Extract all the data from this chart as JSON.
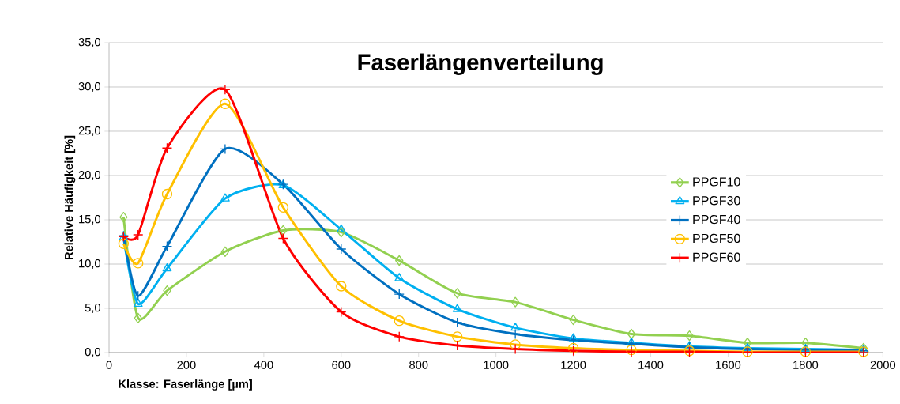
{
  "chart_data": {
    "type": "line",
    "title": "Faserlängenverteilung",
    "xlabel": "Klasse: Faserlänge [µm]",
    "ylabel": "Relative Häufigkeit [%]",
    "x": [
      37.5,
      75,
      150,
      300,
      450,
      600,
      750,
      900,
      1050,
      1200,
      1350,
      1500,
      1650,
      1800,
      1950
    ],
    "series": [
      {
        "name": "PPGF10",
        "color": "#92d050",
        "marker": "diamond",
        "values": [
          15.3,
          3.9,
          7.0,
          11.4,
          13.8,
          13.6,
          10.4,
          6.7,
          5.7,
          3.7,
          2.1,
          1.9,
          1.1,
          1.1,
          0.5
        ]
      },
      {
        "name": "PPGF30",
        "color": "#00b0f0",
        "marker": "triangle",
        "values": [
          13.0,
          5.5,
          9.5,
          17.4,
          18.9,
          13.9,
          8.4,
          4.9,
          2.8,
          1.6,
          1.1,
          0.7,
          0.5,
          0.4,
          0.3
        ]
      },
      {
        "name": "PPGF40",
        "color": "#0070c0",
        "marker": "cross",
        "values": [
          13.2,
          6.4,
          12.0,
          23.0,
          19.0,
          11.7,
          6.6,
          3.4,
          2.1,
          1.4,
          1.0,
          0.6,
          0.4,
          0.3,
          0.2
        ]
      },
      {
        "name": "PPGF50",
        "color": "#ffc000",
        "marker": "circle",
        "values": [
          12.3,
          10.1,
          17.9,
          28.1,
          16.4,
          7.5,
          3.6,
          1.8,
          0.9,
          0.5,
          0.3,
          0.2,
          0.1,
          0.1,
          0.1
        ]
      },
      {
        "name": "PPGF60",
        "color": "#ff0000",
        "marker": "cross",
        "values": [
          13.1,
          13.3,
          23.1,
          29.7,
          12.9,
          4.6,
          1.8,
          0.8,
          0.4,
          0.2,
          0.1,
          0.1,
          0.0,
          0.0,
          0.0
        ]
      }
    ],
    "xlim": [
      0,
      2000
    ],
    "xticks": [
      0,
      200,
      400,
      600,
      800,
      1000,
      1200,
      1400,
      1600,
      1800,
      2000
    ],
    "ylim": [
      0,
      35
    ],
    "yticks": [
      {
        "value": 0,
        "label": "0,0"
      },
      {
        "value": 5,
        "label": "5,0"
      },
      {
        "value": 10,
        "label": "10,0"
      },
      {
        "value": 15,
        "label": "15,0"
      },
      {
        "value": 20,
        "label": "20,0"
      },
      {
        "value": 25,
        "label": "25,0"
      },
      {
        "value": 30,
        "label": "30,0"
      },
      {
        "value": 35,
        "label": "35,0"
      }
    ],
    "grid": "y",
    "legend": "right",
    "line_style": "solid"
  }
}
